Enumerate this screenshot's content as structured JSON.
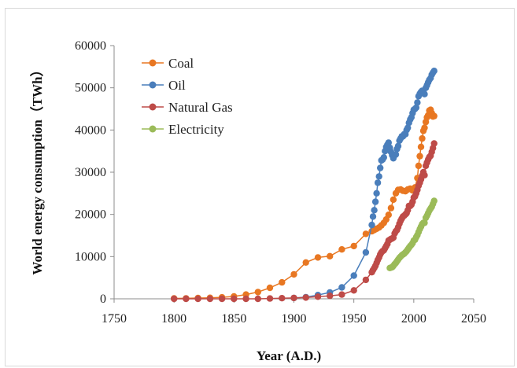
{
  "chart_data": {
    "type": "line",
    "title": "",
    "xlabel": "Year (A.D.)",
    "ylabel": "World energy consumption（TWh）",
    "xlim": [
      1750,
      2050
    ],
    "ylim": [
      0,
      60000
    ],
    "xticks": [
      "1750",
      "1800",
      "1850",
      "1900",
      "1950",
      "2000",
      "2050"
    ],
    "yticks": [
      "0",
      "10000",
      "20000",
      "30000",
      "40000",
      "50000",
      "60000"
    ],
    "grid": false,
    "legend_position": "top-left",
    "series": [
      {
        "name": "Coal",
        "color": "#e87722",
        "points": [
          [
            1800,
            100
          ],
          [
            1810,
            120
          ],
          [
            1820,
            180
          ],
          [
            1830,
            250
          ],
          [
            1840,
            350
          ],
          [
            1850,
            550
          ],
          [
            1860,
            1000
          ],
          [
            1870,
            1600
          ],
          [
            1880,
            2600
          ],
          [
            1890,
            3900
          ],
          [
            1900,
            5800
          ],
          [
            1910,
            8600
          ],
          [
            1920,
            9800
          ],
          [
            1930,
            10100
          ],
          [
            1940,
            11700
          ],
          [
            1950,
            12500
          ],
          [
            1960,
            15400
          ],
          [
            1965,
            16000
          ],
          [
            1967,
            16300
          ],
          [
            1969,
            16600
          ],
          [
            1971,
            16900
          ],
          [
            1973,
            17400
          ],
          [
            1975,
            18000
          ],
          [
            1977,
            18800
          ],
          [
            1979,
            19900
          ],
          [
            1981,
            21500
          ],
          [
            1983,
            23500
          ],
          [
            1985,
            25000
          ],
          [
            1987,
            25800
          ],
          [
            1989,
            25900
          ],
          [
            1991,
            25600
          ],
          [
            1993,
            25500
          ],
          [
            1995,
            25900
          ],
          [
            1997,
            26100
          ],
          [
            1999,
            25700
          ],
          [
            2001,
            26400
          ],
          [
            2003,
            28600
          ],
          [
            2004,
            31500
          ],
          [
            2005,
            33800
          ],
          [
            2006,
            36000
          ],
          [
            2007,
            38000
          ],
          [
            2008,
            39800
          ],
          [
            2009,
            40500
          ],
          [
            2010,
            41900
          ],
          [
            2011,
            43000
          ],
          [
            2012,
            43500
          ],
          [
            2013,
            44600
          ],
          [
            2014,
            44800
          ],
          [
            2015,
            44000
          ],
          [
            2016,
            43200
          ],
          [
            2017,
            43300
          ]
        ]
      },
      {
        "name": "Oil",
        "color": "#4a7ebb",
        "points": [
          [
            1900,
            200
          ],
          [
            1910,
            400
          ],
          [
            1920,
            900
          ],
          [
            1930,
            1500
          ],
          [
            1940,
            2700
          ],
          [
            1950,
            5500
          ],
          [
            1960,
            11000
          ],
          [
            1965,
            17500
          ],
          [
            1966,
            19500
          ],
          [
            1967,
            21000
          ],
          [
            1968,
            23000
          ],
          [
            1969,
            25000
          ],
          [
            1970,
            27500
          ],
          [
            1971,
            29000
          ],
          [
            1972,
            31000
          ],
          [
            1973,
            32800
          ],
          [
            1974,
            33000
          ],
          [
            1975,
            33500
          ],
          [
            1976,
            35000
          ],
          [
            1977,
            36000
          ],
          [
            1978,
            36500
          ],
          [
            1979,
            37000
          ],
          [
            1980,
            35800
          ],
          [
            1981,
            34800
          ],
          [
            1982,
            34000
          ],
          [
            1983,
            33300
          ],
          [
            1984,
            34000
          ],
          [
            1985,
            34200
          ],
          [
            1986,
            35500
          ],
          [
            1987,
            36200
          ],
          [
            1988,
            37500
          ],
          [
            1989,
            38000
          ],
          [
            1990,
            38500
          ],
          [
            1991,
            38500
          ],
          [
            1992,
            39000
          ],
          [
            1993,
            39000
          ],
          [
            1994,
            40000
          ],
          [
            1995,
            40500
          ],
          [
            1996,
            41700
          ],
          [
            1997,
            42500
          ],
          [
            1998,
            43000
          ],
          [
            1999,
            44000
          ],
          [
            2000,
            44800
          ],
          [
            2001,
            45000
          ],
          [
            2002,
            45300
          ],
          [
            2003,
            46500
          ],
          [
            2004,
            48000
          ],
          [
            2005,
            48600
          ],
          [
            2006,
            49000
          ],
          [
            2007,
            49300
          ],
          [
            2008,
            49100
          ],
          [
            2009,
            48500
          ],
          [
            2010,
            50000
          ],
          [
            2011,
            50600
          ],
          [
            2012,
            51300
          ],
          [
            2013,
            51900
          ],
          [
            2014,
            52300
          ],
          [
            2015,
            53100
          ],
          [
            2016,
            53600
          ],
          [
            2017,
            54000
          ]
        ]
      },
      {
        "name": "Natural Gas",
        "color": "#be4b48",
        "points": [
          [
            1800,
            0
          ],
          [
            1810,
            0
          ],
          [
            1820,
            0
          ],
          [
            1830,
            0
          ],
          [
            1840,
            0
          ],
          [
            1850,
            0
          ],
          [
            1860,
            0
          ],
          [
            1870,
            0
          ],
          [
            1880,
            80
          ],
          [
            1890,
            150
          ],
          [
            1900,
            200
          ],
          [
            1910,
            300
          ],
          [
            1920,
            500
          ],
          [
            1930,
            700
          ],
          [
            1940,
            1000
          ],
          [
            1950,
            2000
          ],
          [
            1960,
            4500
          ],
          [
            1965,
            6300
          ],
          [
            1966,
            6800
          ],
          [
            1967,
            7300
          ],
          [
            1968,
            7800
          ],
          [
            1969,
            8500
          ],
          [
            1970,
            9200
          ],
          [
            1971,
            9800
          ],
          [
            1972,
            10500
          ],
          [
            1973,
            11000
          ],
          [
            1974,
            11300
          ],
          [
            1975,
            11500
          ],
          [
            1976,
            12000
          ],
          [
            1977,
            12500
          ],
          [
            1978,
            13000
          ],
          [
            1979,
            13800
          ],
          [
            1980,
            14000
          ],
          [
            1981,
            14200
          ],
          [
            1982,
            14300
          ],
          [
            1983,
            14500
          ],
          [
            1984,
            15500
          ],
          [
            1985,
            16000
          ],
          [
            1986,
            16300
          ],
          [
            1987,
            17000
          ],
          [
            1988,
            17800
          ],
          [
            1989,
            18500
          ],
          [
            1990,
            19000
          ],
          [
            1991,
            19500
          ],
          [
            1992,
            19700
          ],
          [
            1993,
            20000
          ],
          [
            1994,
            20300
          ],
          [
            1995,
            21000
          ],
          [
            1996,
            22000
          ],
          [
            1997,
            22000
          ],
          [
            1998,
            22300
          ],
          [
            1999,
            23000
          ],
          [
            2000,
            24000
          ],
          [
            2001,
            24300
          ],
          [
            2002,
            25000
          ],
          [
            2003,
            25800
          ],
          [
            2004,
            26800
          ],
          [
            2005,
            27500
          ],
          [
            2006,
            28300
          ],
          [
            2007,
            29200
          ],
          [
            2008,
            30000
          ],
          [
            2009,
            29300
          ],
          [
            2010,
            31500
          ],
          [
            2011,
            32300
          ],
          [
            2012,
            33000
          ],
          [
            2013,
            33600
          ],
          [
            2014,
            33900
          ],
          [
            2015,
            34800
          ],
          [
            2016,
            35700
          ],
          [
            2017,
            36800
          ]
        ]
      },
      {
        "name": "Electricity",
        "color": "#9bbb59",
        "points": [
          [
            1980,
            7300
          ],
          [
            1981,
            7400
          ],
          [
            1982,
            7500
          ],
          [
            1983,
            7800
          ],
          [
            1984,
            8200
          ],
          [
            1985,
            8500
          ],
          [
            1986,
            8900
          ],
          [
            1987,
            9300
          ],
          [
            1988,
            9700
          ],
          [
            1989,
            10000
          ],
          [
            1990,
            10300
          ],
          [
            1991,
            10500
          ],
          [
            1992,
            10700
          ],
          [
            1993,
            11000
          ],
          [
            1994,
            11300
          ],
          [
            1995,
            11700
          ],
          [
            1996,
            12100
          ],
          [
            1997,
            12500
          ],
          [
            1998,
            12800
          ],
          [
            1999,
            13200
          ],
          [
            2000,
            13800
          ],
          [
            2001,
            14000
          ],
          [
            2002,
            14600
          ],
          [
            2003,
            15100
          ],
          [
            2004,
            15800
          ],
          [
            2005,
            16500
          ],
          [
            2006,
            17100
          ],
          [
            2007,
            17700
          ],
          [
            2008,
            18000
          ],
          [
            2009,
            18000
          ],
          [
            2010,
            19200
          ],
          [
            2011,
            19700
          ],
          [
            2012,
            20300
          ],
          [
            2013,
            20900
          ],
          [
            2014,
            21400
          ],
          [
            2015,
            21800
          ],
          [
            2016,
            22500
          ],
          [
            2017,
            23200
          ]
        ]
      }
    ]
  }
}
